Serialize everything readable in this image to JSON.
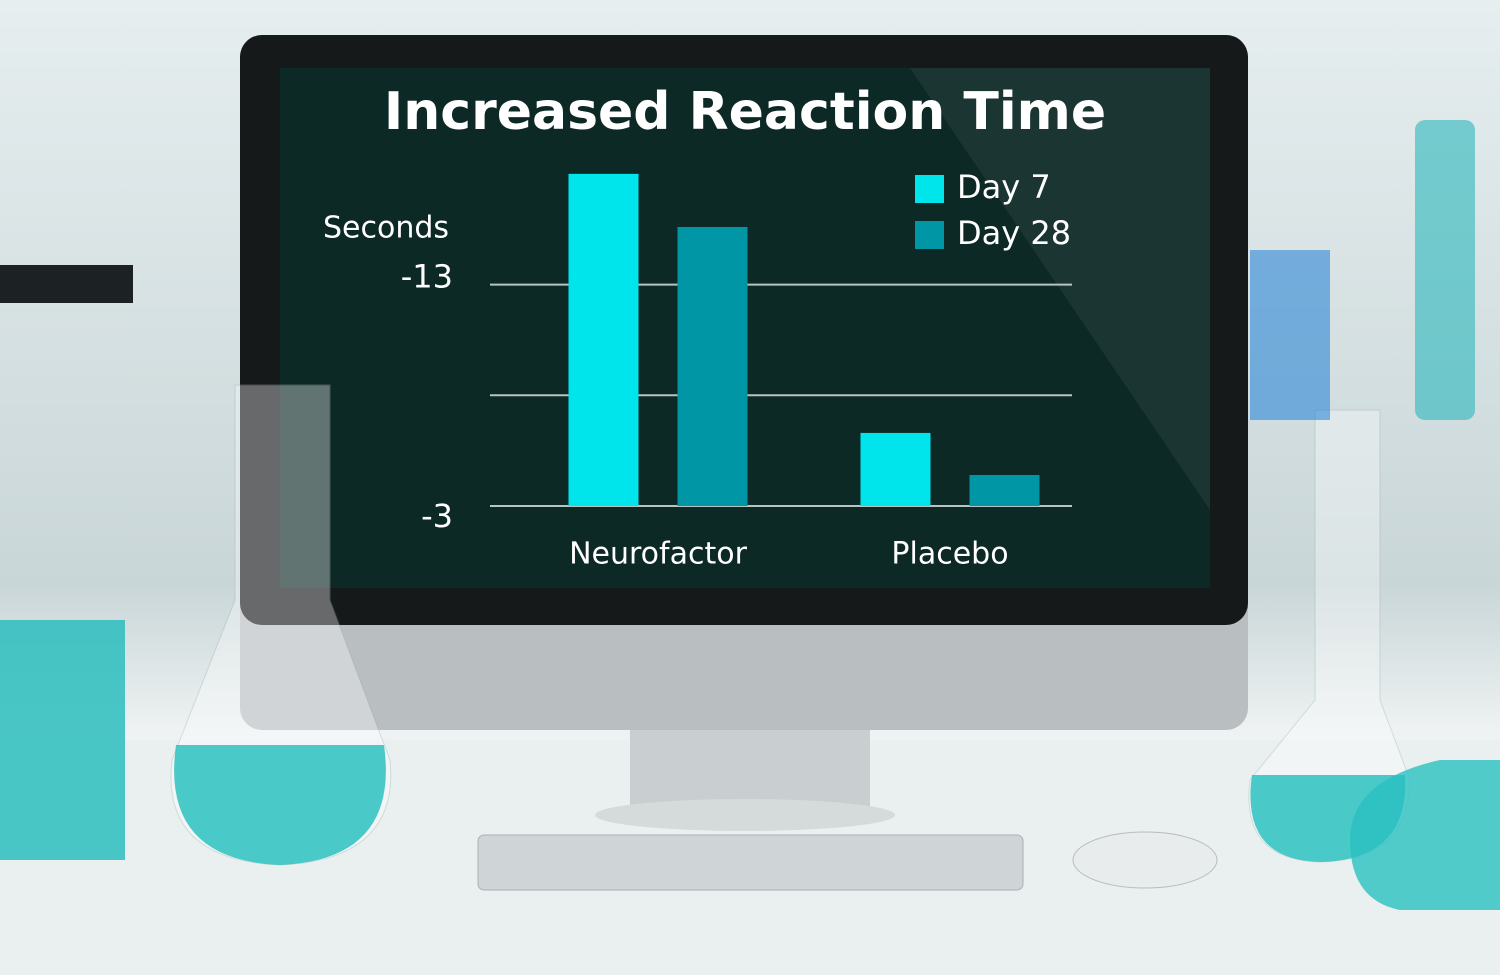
{
  "chart_data": {
    "type": "bar",
    "title": "Increased Reaction Time",
    "y_label": "Seconds",
    "categories": [
      "Neurofactor",
      "Placebo"
    ],
    "series": [
      {
        "name": "Day 7",
        "color": "#00e5ec",
        "values": [
          -18,
          -6.3
        ]
      },
      {
        "name": "Day 28",
        "color": "#0096a6",
        "values": [
          -15.6,
          -4.4
        ]
      }
    ],
    "ylim": [
      -3,
      -18.4
    ],
    "yticks": [
      -13,
      -3
    ],
    "grid_lines": [
      -13,
      -8,
      -3
    ],
    "grid": true,
    "legend": "top-right"
  }
}
